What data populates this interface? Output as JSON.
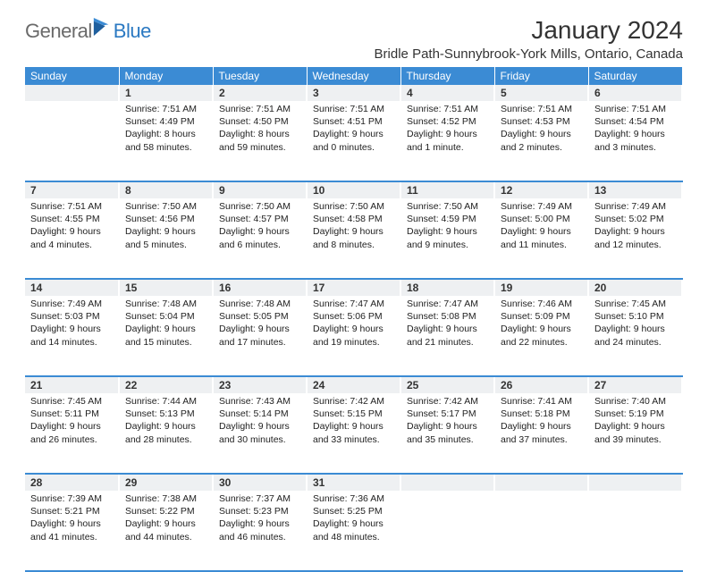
{
  "logo": {
    "text1": "General",
    "text2": "Blue"
  },
  "title": "January 2024",
  "location": "Bridle Path-Sunnybrook-York Mills, Ontario, Canada",
  "colors": {
    "header_bg": "#3b8bd4",
    "header_text": "#ffffff",
    "daynum_bg": "#eef0f2",
    "row_divider": "#3b8bd4",
    "logo_gray": "#6a6a6a",
    "logo_blue": "#2b79c2"
  },
  "weekdays": [
    "Sunday",
    "Monday",
    "Tuesday",
    "Wednesday",
    "Thursday",
    "Friday",
    "Saturday"
  ],
  "weeks": [
    [
      null,
      {
        "n": "1",
        "sr": "7:51 AM",
        "ss": "4:49 PM",
        "dl": "8 hours and 58 minutes."
      },
      {
        "n": "2",
        "sr": "7:51 AM",
        "ss": "4:50 PM",
        "dl": "8 hours and 59 minutes."
      },
      {
        "n": "3",
        "sr": "7:51 AM",
        "ss": "4:51 PM",
        "dl": "9 hours and 0 minutes."
      },
      {
        "n": "4",
        "sr": "7:51 AM",
        "ss": "4:52 PM",
        "dl": "9 hours and 1 minute."
      },
      {
        "n": "5",
        "sr": "7:51 AM",
        "ss": "4:53 PM",
        "dl": "9 hours and 2 minutes."
      },
      {
        "n": "6",
        "sr": "7:51 AM",
        "ss": "4:54 PM",
        "dl": "9 hours and 3 minutes."
      }
    ],
    [
      {
        "n": "7",
        "sr": "7:51 AM",
        "ss": "4:55 PM",
        "dl": "9 hours and 4 minutes."
      },
      {
        "n": "8",
        "sr": "7:50 AM",
        "ss": "4:56 PM",
        "dl": "9 hours and 5 minutes."
      },
      {
        "n": "9",
        "sr": "7:50 AM",
        "ss": "4:57 PM",
        "dl": "9 hours and 6 minutes."
      },
      {
        "n": "10",
        "sr": "7:50 AM",
        "ss": "4:58 PM",
        "dl": "9 hours and 8 minutes."
      },
      {
        "n": "11",
        "sr": "7:50 AM",
        "ss": "4:59 PM",
        "dl": "9 hours and 9 minutes."
      },
      {
        "n": "12",
        "sr": "7:49 AM",
        "ss": "5:00 PM",
        "dl": "9 hours and 11 minutes."
      },
      {
        "n": "13",
        "sr": "7:49 AM",
        "ss": "5:02 PM",
        "dl": "9 hours and 12 minutes."
      }
    ],
    [
      {
        "n": "14",
        "sr": "7:49 AM",
        "ss": "5:03 PM",
        "dl": "9 hours and 14 minutes."
      },
      {
        "n": "15",
        "sr": "7:48 AM",
        "ss": "5:04 PM",
        "dl": "9 hours and 15 minutes."
      },
      {
        "n": "16",
        "sr": "7:48 AM",
        "ss": "5:05 PM",
        "dl": "9 hours and 17 minutes."
      },
      {
        "n": "17",
        "sr": "7:47 AM",
        "ss": "5:06 PM",
        "dl": "9 hours and 19 minutes."
      },
      {
        "n": "18",
        "sr": "7:47 AM",
        "ss": "5:08 PM",
        "dl": "9 hours and 21 minutes."
      },
      {
        "n": "19",
        "sr": "7:46 AM",
        "ss": "5:09 PM",
        "dl": "9 hours and 22 minutes."
      },
      {
        "n": "20",
        "sr": "7:45 AM",
        "ss": "5:10 PM",
        "dl": "9 hours and 24 minutes."
      }
    ],
    [
      {
        "n": "21",
        "sr": "7:45 AM",
        "ss": "5:11 PM",
        "dl": "9 hours and 26 minutes."
      },
      {
        "n": "22",
        "sr": "7:44 AM",
        "ss": "5:13 PM",
        "dl": "9 hours and 28 minutes."
      },
      {
        "n": "23",
        "sr": "7:43 AM",
        "ss": "5:14 PM",
        "dl": "9 hours and 30 minutes."
      },
      {
        "n": "24",
        "sr": "7:42 AM",
        "ss": "5:15 PM",
        "dl": "9 hours and 33 minutes."
      },
      {
        "n": "25",
        "sr": "7:42 AM",
        "ss": "5:17 PM",
        "dl": "9 hours and 35 minutes."
      },
      {
        "n": "26",
        "sr": "7:41 AM",
        "ss": "5:18 PM",
        "dl": "9 hours and 37 minutes."
      },
      {
        "n": "27",
        "sr": "7:40 AM",
        "ss": "5:19 PM",
        "dl": "9 hours and 39 minutes."
      }
    ],
    [
      {
        "n": "28",
        "sr": "7:39 AM",
        "ss": "5:21 PM",
        "dl": "9 hours and 41 minutes."
      },
      {
        "n": "29",
        "sr": "7:38 AM",
        "ss": "5:22 PM",
        "dl": "9 hours and 44 minutes."
      },
      {
        "n": "30",
        "sr": "7:37 AM",
        "ss": "5:23 PM",
        "dl": "9 hours and 46 minutes."
      },
      {
        "n": "31",
        "sr": "7:36 AM",
        "ss": "5:25 PM",
        "dl": "9 hours and 48 minutes."
      },
      null,
      null,
      null
    ]
  ],
  "labels": {
    "sunrise": "Sunrise: ",
    "sunset": "Sunset: ",
    "daylight": "Daylight: "
  }
}
